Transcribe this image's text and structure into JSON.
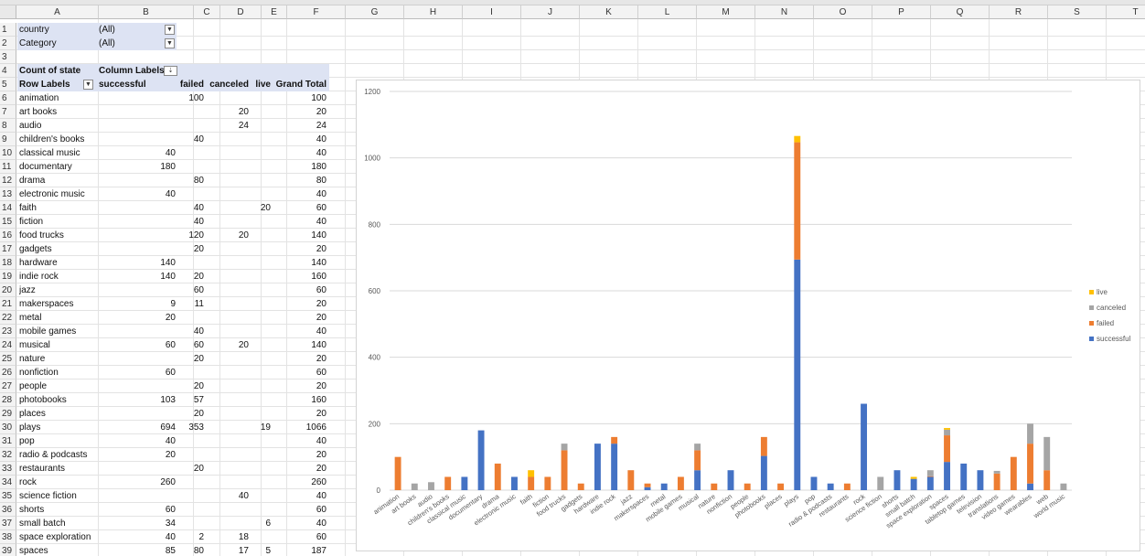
{
  "columns": [
    {
      "letter": "A",
      "w": 90
    },
    {
      "letter": "B",
      "w": 104
    },
    {
      "letter": "C",
      "w": 29
    },
    {
      "letter": "D",
      "w": 45
    },
    {
      "letter": "E",
      "w": 28
    },
    {
      "letter": "F",
      "w": 64
    },
    {
      "letter": "G",
      "w": 64
    },
    {
      "letter": "H",
      "w": 64
    },
    {
      "letter": "I",
      "w": 64
    },
    {
      "letter": "J",
      "w": 64
    },
    {
      "letter": "K",
      "w": 64
    },
    {
      "letter": "L",
      "w": 64
    },
    {
      "letter": "M",
      "w": 64
    },
    {
      "letter": "N",
      "w": 64
    },
    {
      "letter": "O",
      "w": 64
    },
    {
      "letter": "P",
      "w": 64
    },
    {
      "letter": "Q",
      "w": 64
    },
    {
      "letter": "R",
      "w": 64
    },
    {
      "letter": "S",
      "w": 64
    },
    {
      "letter": "T",
      "w": 64
    }
  ],
  "filters": [
    {
      "field": "country",
      "value": "(All)"
    },
    {
      "field": "Category",
      "value": "(All)"
    }
  ],
  "pivot": {
    "value_caption": "Count of state",
    "col_caption": "Column Labels",
    "row_caption": "Row Labels",
    "col_headers": [
      "successful",
      "failed",
      "canceled",
      "live",
      "Grand Total"
    ],
    "rows": [
      [
        "animation",
        "",
        "100",
        "",
        "",
        "100"
      ],
      [
        "art books",
        "",
        "",
        "20",
        "",
        "20"
      ],
      [
        "audio",
        "",
        "",
        "24",
        "",
        "24"
      ],
      [
        "children's books",
        "",
        "40",
        "",
        "",
        "40"
      ],
      [
        "classical music",
        "40",
        "",
        "",
        "",
        "40"
      ],
      [
        "documentary",
        "180",
        "",
        "",
        "",
        "180"
      ],
      [
        "drama",
        "",
        "80",
        "",
        "",
        "80"
      ],
      [
        "electronic music",
        "40",
        "",
        "",
        "",
        "40"
      ],
      [
        "faith",
        "",
        "40",
        "",
        "20",
        "60"
      ],
      [
        "fiction",
        "",
        "40",
        "",
        "",
        "40"
      ],
      [
        "food trucks",
        "",
        "120",
        "20",
        "",
        "140"
      ],
      [
        "gadgets",
        "",
        "20",
        "",
        "",
        "20"
      ],
      [
        "hardware",
        "140",
        "",
        "",
        "",
        "140"
      ],
      [
        "indie rock",
        "140",
        "20",
        "",
        "",
        "160"
      ],
      [
        "jazz",
        "",
        "60",
        "",
        "",
        "60"
      ],
      [
        "makerspaces",
        "9",
        "11",
        "",
        "",
        "20"
      ],
      [
        "metal",
        "20",
        "",
        "",
        "",
        "20"
      ],
      [
        "mobile games",
        "",
        "40",
        "",
        "",
        "40"
      ],
      [
        "musical",
        "60",
        "60",
        "20",
        "",
        "140"
      ],
      [
        "nature",
        "",
        "20",
        "",
        "",
        "20"
      ],
      [
        "nonfiction",
        "60",
        "",
        "",
        "",
        "60"
      ],
      [
        "people",
        "",
        "20",
        "",
        "",
        "20"
      ],
      [
        "photobooks",
        "103",
        "57",
        "",
        "",
        "160"
      ],
      [
        "places",
        "",
        "20",
        "",
        "",
        "20"
      ],
      [
        "plays",
        "694",
        "353",
        "",
        "19",
        "1066"
      ],
      [
        "pop",
        "40",
        "",
        "",
        "",
        "40"
      ],
      [
        "radio & podcasts",
        "20",
        "",
        "",
        "",
        "20"
      ],
      [
        "restaurants",
        "",
        "20",
        "",
        "",
        "20"
      ],
      [
        "rock",
        "260",
        "",
        "",
        "",
        "260"
      ],
      [
        "science fiction",
        "",
        "",
        "40",
        "",
        "40"
      ],
      [
        "shorts",
        "60",
        "",
        "",
        "",
        "60"
      ],
      [
        "small batch",
        "34",
        "",
        "",
        "6",
        "40"
      ],
      [
        "space exploration",
        "40",
        "2",
        "18",
        "",
        "60"
      ],
      [
        "spaces",
        "85",
        "80",
        "17",
        "5",
        "187"
      ]
    ]
  },
  "chart_data": {
    "type": "bar",
    "stacked": true,
    "ylim": [
      0,
      1200
    ],
    "yticks": [
      "0",
      "200",
      "400",
      "600",
      "800",
      "1000",
      "1200"
    ],
    "grid": true,
    "legend_position": "right",
    "categories": [
      "animation",
      "art books",
      "audio",
      "children's books",
      "classical music",
      "documentary",
      "drama",
      "electronic music",
      "faith",
      "fiction",
      "food trucks",
      "gadgets",
      "hardware",
      "indie rock",
      "jazz",
      "makerspaces",
      "metal",
      "mobile games",
      "musical",
      "nature",
      "nonfiction",
      "people",
      "photobooks",
      "places",
      "plays",
      "pop",
      "radio & podcasts",
      "restaurants",
      "rock",
      "science fiction",
      "shorts",
      "small batch",
      "space exploration",
      "spaces",
      "tabletop games",
      "television",
      "translations",
      "video games",
      "wearables",
      "web",
      "world music"
    ],
    "series": [
      {
        "name": "successful",
        "color": "#4472c4",
        "values": [
          0,
          0,
          0,
          0,
          40,
          180,
          0,
          40,
          0,
          0,
          0,
          0,
          140,
          140,
          0,
          9,
          20,
          0,
          60,
          0,
          60,
          0,
          103,
          0,
          694,
          40,
          20,
          0,
          260,
          0,
          60,
          34,
          40,
          85,
          80,
          60,
          0,
          0,
          20,
          0,
          0
        ]
      },
      {
        "name": "failed",
        "color": "#ed7d31",
        "values": [
          100,
          0,
          0,
          40,
          0,
          0,
          80,
          0,
          40,
          40,
          120,
          20,
          0,
          20,
          60,
          11,
          0,
          40,
          60,
          20,
          0,
          20,
          57,
          20,
          353,
          0,
          0,
          20,
          0,
          0,
          0,
          0,
          2,
          80,
          0,
          0,
          50,
          100,
          120,
          60,
          0
        ]
      },
      {
        "name": "canceled",
        "color": "#a5a5a5",
        "values": [
          0,
          20,
          24,
          0,
          0,
          0,
          0,
          0,
          0,
          0,
          20,
          0,
          0,
          0,
          0,
          0,
          0,
          0,
          20,
          0,
          0,
          0,
          0,
          0,
          0,
          0,
          0,
          0,
          0,
          40,
          0,
          0,
          18,
          17,
          0,
          0,
          8,
          0,
          60,
          100,
          20
        ]
      },
      {
        "name": "live",
        "color": "#ffc000",
        "values": [
          0,
          0,
          0,
          0,
          0,
          0,
          0,
          0,
          20,
          0,
          0,
          0,
          0,
          0,
          0,
          0,
          0,
          0,
          0,
          0,
          0,
          0,
          0,
          0,
          19,
          0,
          0,
          0,
          0,
          0,
          0,
          6,
          0,
          5,
          0,
          0,
          0,
          0,
          0,
          0,
          0
        ]
      }
    ],
    "legend_order": [
      "live",
      "canceled",
      "failed",
      "successful"
    ]
  }
}
